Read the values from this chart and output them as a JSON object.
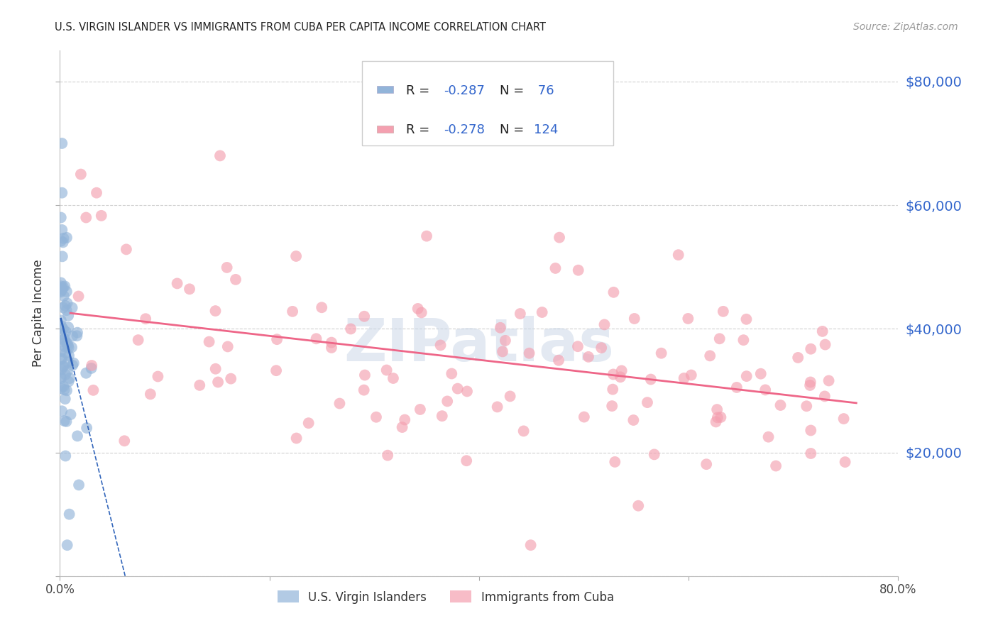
{
  "title": "U.S. VIRGIN ISLANDER VS IMMIGRANTS FROM CUBA PER CAPITA INCOME CORRELATION CHART",
  "source": "Source: ZipAtlas.com",
  "ylabel": "Per Capita Income",
  "xlim": [
    0,
    0.8
  ],
  "ylim": [
    0,
    85000
  ],
  "yticks": [
    0,
    20000,
    40000,
    60000,
    80000
  ],
  "ytick_labels": [
    "",
    "$20,000",
    "$40,000",
    "$60,000",
    "$80,000"
  ],
  "xticks": [
    0,
    0.2,
    0.4,
    0.6,
    0.8
  ],
  "xtick_labels": [
    "0.0%",
    "",
    "",
    "",
    "80.0%"
  ],
  "blue_R": "-0.287",
  "blue_N": "76",
  "pink_R": "-0.278",
  "pink_N": "124",
  "blue_label": "U.S. Virgin Islanders",
  "pink_label": "Immigrants from Cuba",
  "blue_color": "#92b4d9",
  "pink_color": "#f4a0b0",
  "blue_line_color": "#3366bb",
  "pink_line_color": "#ee6688",
  "text_color_dark": "#222222",
  "text_color_blue": "#3366cc",
  "background_color": "#ffffff",
  "grid_color": "#d0d0d0",
  "watermark_color": "#ccd8e8"
}
